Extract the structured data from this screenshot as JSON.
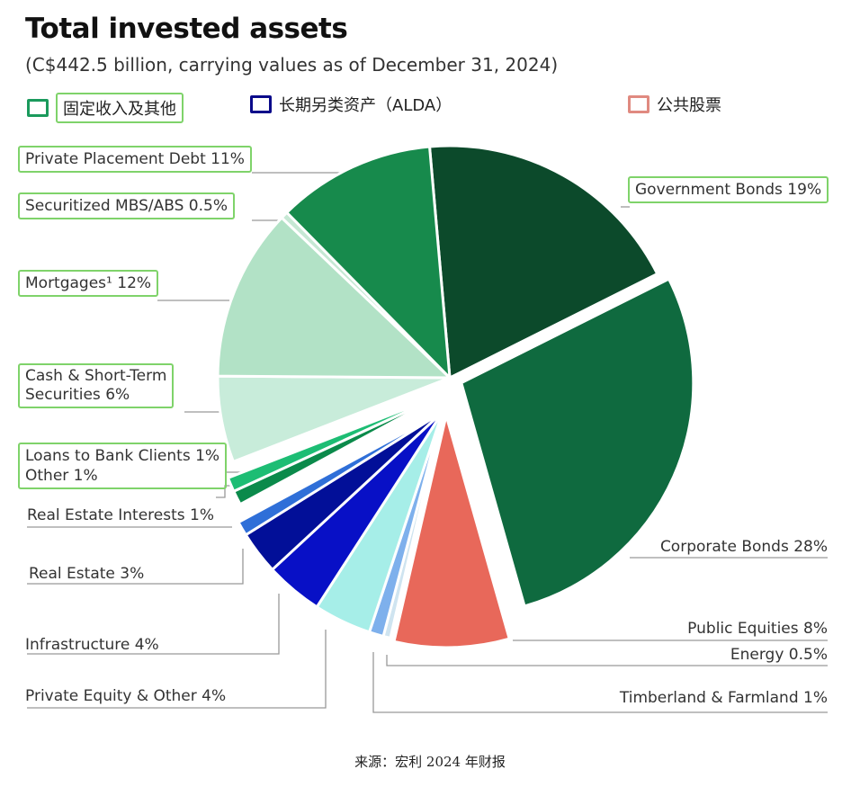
{
  "header": {
    "title": "Total invested assets",
    "subtitle": "(C$442.5 billion, carrying values as of December 31, 2024)"
  },
  "legend": [
    {
      "label": "固定收入及其他",
      "color": "#1a9a5c"
    },
    {
      "label": "长期另类资产（ALDA）",
      "color": "#0a0a8a"
    },
    {
      "label": "公共股票",
      "color": "#e08a80"
    }
  ],
  "chart_data": {
    "type": "pie",
    "title": "Total invested assets",
    "unit": "%",
    "slices": [
      {
        "label": "Government Bonds 19%",
        "name": "Government Bonds",
        "value": 19,
        "color": "#0c4a2b",
        "group": "fixed"
      },
      {
        "label": "Corporate Bonds 28%",
        "name": "Corporate Bonds",
        "value": 28,
        "color": "#0f6a3f",
        "group": "fixed"
      },
      {
        "label": "Public Equities 8%",
        "name": "Public Equities",
        "value": 8,
        "color": "#e8685a",
        "group": "equity"
      },
      {
        "label": "Energy 0.5%",
        "name": "Energy",
        "value": 0.5,
        "color": "#cfe4f0",
        "group": "alda"
      },
      {
        "label": "Timberland & Farmland 1%",
        "name": "Timberland & Farmland",
        "value": 1,
        "color": "#7eb0ec",
        "group": "alda"
      },
      {
        "label": "Private Equity & Other 4%",
        "name": "Private Equity & Other",
        "value": 4,
        "color": "#a6eee8",
        "group": "alda"
      },
      {
        "label": "Infrastructure 4%",
        "name": "Infrastructure",
        "value": 4,
        "color": "#0810c6",
        "group": "alda"
      },
      {
        "label": "Real Estate 3%",
        "name": "Real Estate",
        "value": 3,
        "color": "#020f98",
        "group": "alda"
      },
      {
        "label": "Real Estate Interests 1%",
        "name": "Real Estate Interests",
        "value": 1,
        "color": "#2f6fd8",
        "group": "alda"
      },
      {
        "label": "Loans to Bank Clients 1%",
        "name": "Loans to Bank Clients",
        "value": 1,
        "color": "#0b8a4b",
        "group": "fixed2"
      },
      {
        "label": "Other 1%",
        "name": "Other",
        "value": 1,
        "color": "#1dbd74",
        "group": "fixed2"
      },
      {
        "label": "Cash & Short-Term Securities 6%",
        "name": "Cash & Short-Term Securities",
        "value": 6,
        "color": "#c8ecda",
        "group": "fixed"
      },
      {
        "label": "Mortgages¹ 12%",
        "name": "Mortgages",
        "value": 12,
        "color": "#b2e2c6",
        "group": "fixed"
      },
      {
        "label": "Securitized MBS/ABS 0.5%",
        "name": "Securitized MBS/ABS",
        "value": 0.5,
        "color": "#c6e8d4",
        "group": "fixed"
      },
      {
        "label": "Private Placement Debt 11%",
        "name": "Private Placement Debt",
        "value": 11,
        "color": "#178a4c",
        "group": "fixed"
      }
    ]
  },
  "labels": {
    "cash_line1": "Cash & Short-Term",
    "cash_line2": "Securities 6%"
  },
  "source": "来源：宏利 2024 年财报"
}
